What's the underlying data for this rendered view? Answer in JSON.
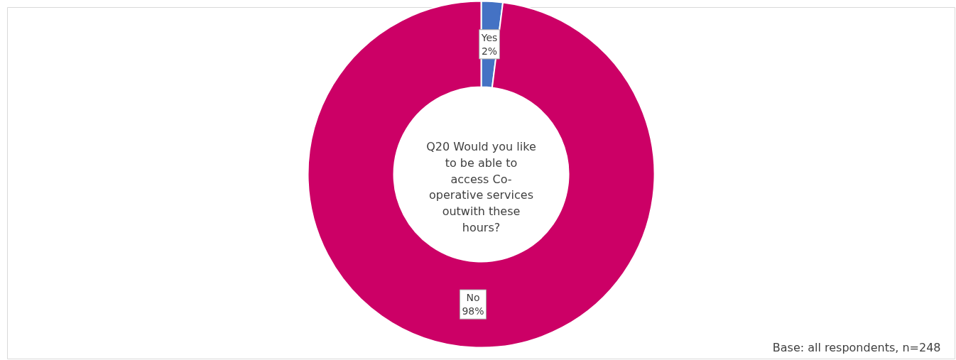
{
  "chart_data": {
    "type": "donut",
    "title": "Q20 Would you like\nto be able to\naccess Co-\noperative services\noutwith these\nhours?",
    "categories": [
      "Yes",
      "No"
    ],
    "values": [
      2,
      98
    ],
    "colors": [
      "#4472c4",
      "#cc0066"
    ],
    "value_labels": [
      "2%",
      "98%"
    ],
    "annotations": [
      "Base: all respondents, n=248"
    ]
  }
}
